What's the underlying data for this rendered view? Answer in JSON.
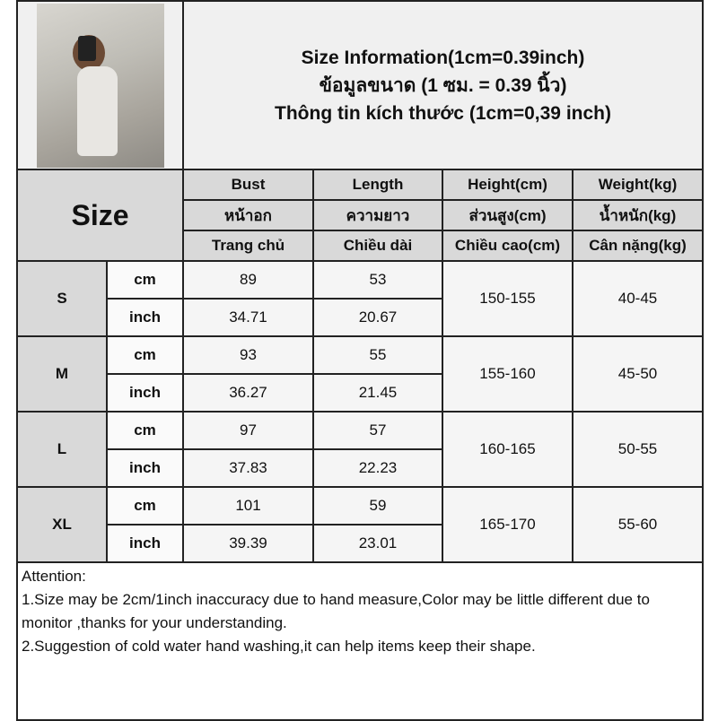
{
  "title_lines": [
    "Size Information(1cm=0.39inch)",
    "ข้อมูลขนาด (1 ซม. = 0.39 นิ้ว)",
    "Thông tin kích thước (1cm=0,39 inch)"
  ],
  "size_header": "Size",
  "columns": [
    {
      "en": "Bust",
      "th": "หน้าอก",
      "vi": "Trang chủ"
    },
    {
      "en": "Length",
      "th": "ความยาว",
      "vi": "Chiều dài"
    },
    {
      "en": "Height(cm)",
      "th": "ส่วนสูง(cm)",
      "vi": "Chiều cao(cm)"
    },
    {
      "en": "Weight(kg)",
      "th": "น้ำหนัก(kg)",
      "vi": "Cân nặng(kg)"
    }
  ],
  "units": {
    "cm": "cm",
    "inch": "inch"
  },
  "sizes": [
    {
      "size": "S",
      "cm": {
        "bust": "89",
        "length": "53"
      },
      "inch": {
        "bust": "34.71",
        "length": "20.67"
      },
      "height": "150-155",
      "weight": "40-45"
    },
    {
      "size": "M",
      "cm": {
        "bust": "93",
        "length": "55"
      },
      "inch": {
        "bust": "36.27",
        "length": "21.45"
      },
      "height": "155-160",
      "weight": "45-50"
    },
    {
      "size": "L",
      "cm": {
        "bust": "97",
        "length": "57"
      },
      "inch": {
        "bust": "37.83",
        "length": "22.23"
      },
      "height": "160-165",
      "weight": "50-55"
    },
    {
      "size": "XL",
      "cm": {
        "bust": "101",
        "length": "59"
      },
      "inch": {
        "bust": "39.39",
        "length": "23.01"
      },
      "height": "165-170",
      "weight": "55-60"
    }
  ],
  "attention": {
    "heading": "Attention:",
    "lines": [
      "1.Size may be 2cm/1inch inaccuracy due to hand measure,Color may be little different due to monitor ,thanks for your understanding.",
      "2.Suggestion of cold water hand washing,it can help items keep their shape."
    ]
  }
}
